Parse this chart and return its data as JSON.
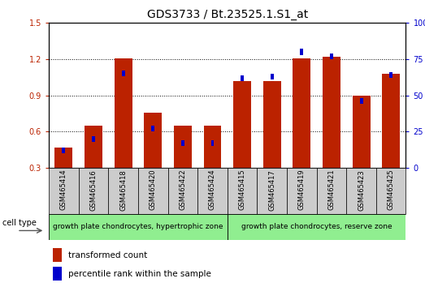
{
  "title": "GDS3733 / Bt.23525.1.S1_at",
  "samples": [
    "GSM465414",
    "GSM465416",
    "GSM465418",
    "GSM465420",
    "GSM465422",
    "GSM465424",
    "GSM465415",
    "GSM465417",
    "GSM465419",
    "GSM465421",
    "GSM465423",
    "GSM465425"
  ],
  "red_values": [
    0.47,
    0.65,
    1.21,
    0.76,
    0.65,
    0.65,
    1.02,
    1.02,
    1.21,
    1.22,
    0.9,
    1.08
  ],
  "blue_pct": [
    12,
    20,
    65,
    27,
    17,
    17,
    62,
    63,
    80,
    77,
    46,
    64
  ],
  "ylim_left": [
    0.3,
    1.5
  ],
  "ylim_right": [
    0,
    100
  ],
  "yticks_left": [
    0.3,
    0.6,
    0.9,
    1.2,
    1.5
  ],
  "yticks_right": [
    0,
    25,
    50,
    75,
    100
  ],
  "group1_label": "growth plate chondrocytes, hypertrophic zone",
  "group2_label": "growth plate chondrocytes, reserve zone",
  "group1_count": 6,
  "group2_count": 6,
  "cell_type_label": "cell type",
  "legend1": "transformed count",
  "legend2": "percentile rank within the sample",
  "red_color": "#BB2200",
  "blue_color": "#0000CC",
  "bar_width": 0.6,
  "bg_label": "#CCCCCC",
  "group_bg": "#90EE90",
  "title_fontsize": 10,
  "tick_fontsize": 7,
  "grid_color": "#000000"
}
